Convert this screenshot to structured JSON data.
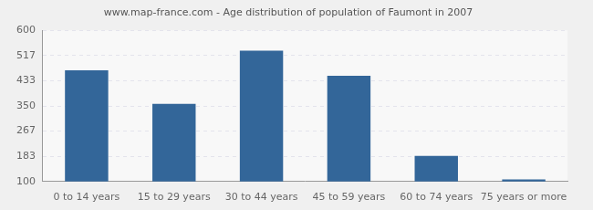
{
  "chart_data": {
    "type": "bar",
    "title": "www.map-france.com - Age distribution of population of Faumont in 2007",
    "categories": [
      "0 to 14 years",
      "15 to 29 years",
      "30 to 44 years",
      "45 to 59 years",
      "60 to 74 years",
      "75 years or more"
    ],
    "values": [
      468,
      357,
      533,
      450,
      185,
      107
    ],
    "color": "#336699",
    "ylim": [
      100,
      600
    ],
    "yticks": [
      100,
      183,
      267,
      350,
      433,
      517,
      600
    ],
    "grid": true
  }
}
